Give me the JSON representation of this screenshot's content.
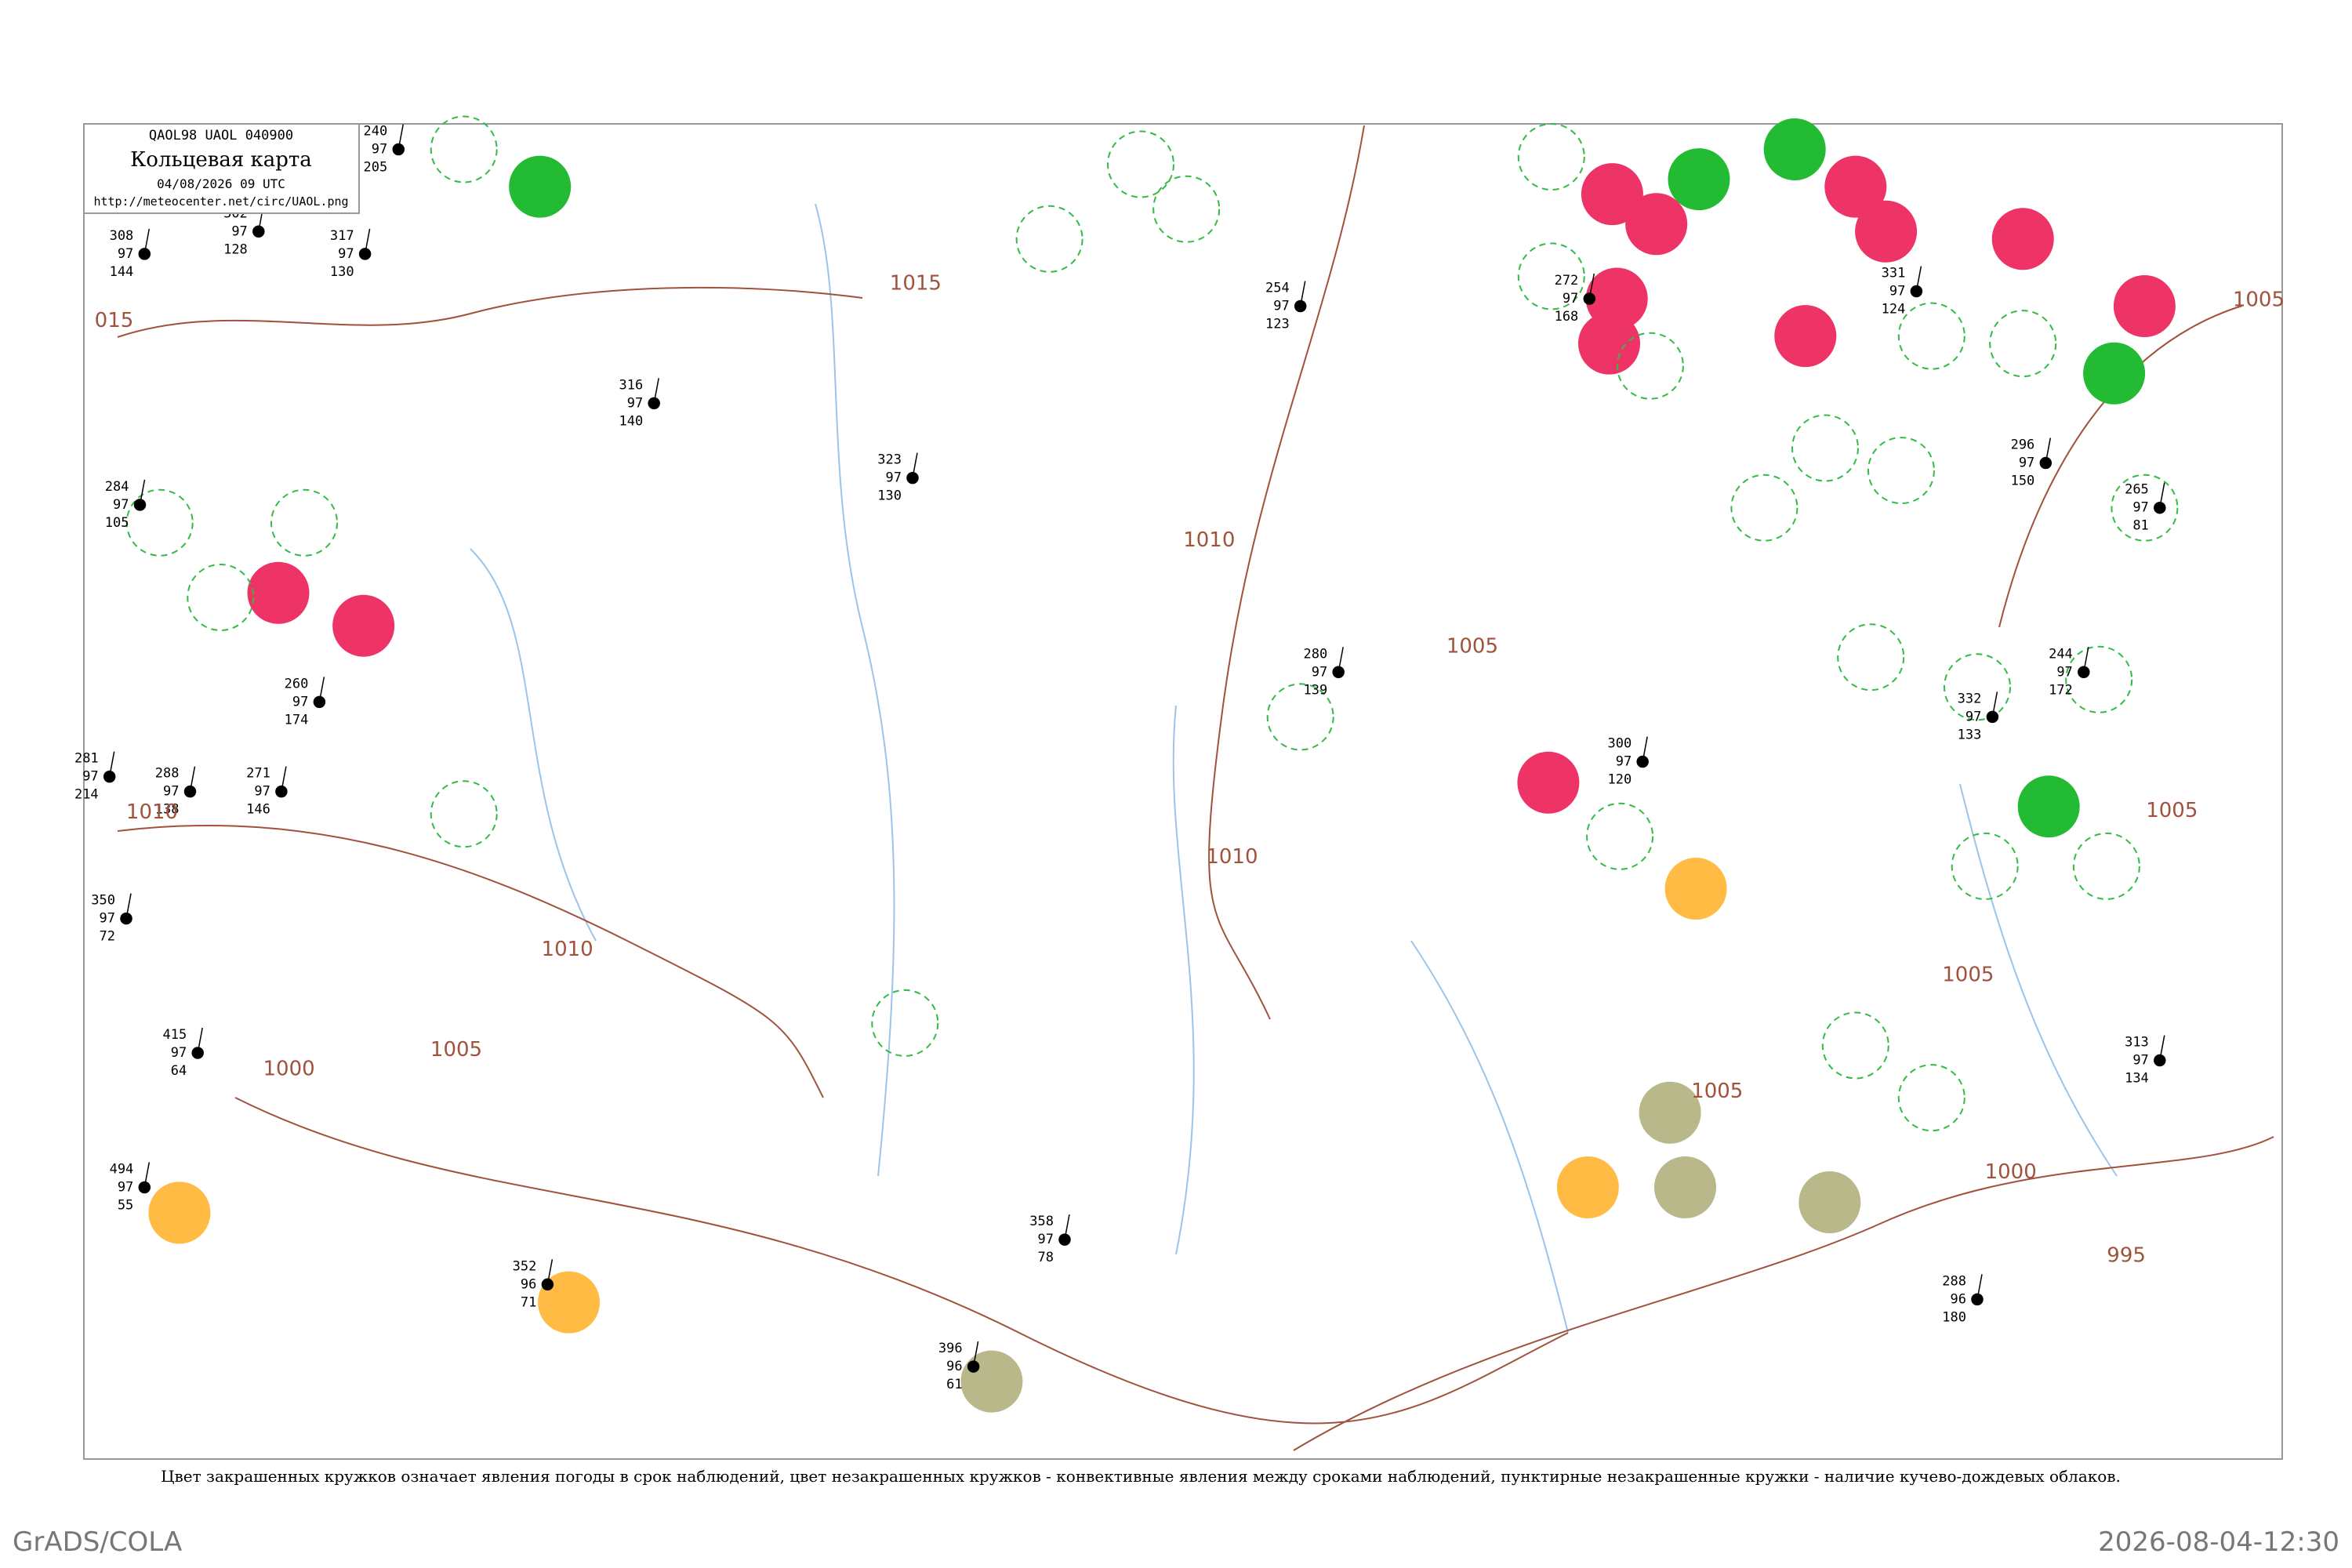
{
  "header": {
    "code": "QAOL98  UAOL  040900",
    "title": "Кольцевая карта",
    "date": "04/08/2026 09 UTC",
    "url": "http://meteocenter.net/circ/UAOL.png"
  },
  "isobar_labels": [
    "1015",
    "1010",
    "1010",
    "1010",
    "1010",
    "1005",
    "1005",
    "1005",
    "1005",
    "1005",
    "1005",
    "1000",
    "1000",
    "995",
    "015"
  ],
  "stations": [
    {
      "p": "308",
      "t": "97",
      "c": "144"
    },
    {
      "p": "302",
      "t": "97",
      "c": "128"
    },
    {
      "p": "317",
      "t": "97",
      "c": "130"
    },
    {
      "p": "240",
      "t": "97",
      "c": "205"
    },
    {
      "p": "284",
      "t": "97",
      "c": "105"
    },
    {
      "p": "281",
      "t": "97",
      "c": "214"
    },
    {
      "p": "288",
      "t": "97",
      "c": "138"
    },
    {
      "p": "271",
      "t": "97",
      "c": "146"
    },
    {
      "p": "350",
      "t": "97",
      "c": "72"
    },
    {
      "p": "415",
      "t": "97",
      "c": "64"
    },
    {
      "p": "494",
      "t": "97",
      "c": "55"
    },
    {
      "p": "260",
      "t": "97",
      "c": "174"
    },
    {
      "p": "316",
      "t": "97",
      "c": "140"
    },
    {
      "p": "323",
      "t": "97",
      "c": "130"
    },
    {
      "p": "254",
      "t": "97",
      "c": "123"
    },
    {
      "p": "272",
      "t": "97",
      "c": "168"
    },
    {
      "p": "331",
      "t": "97",
      "c": "124"
    },
    {
      "p": "296",
      "t": "97",
      "c": "150"
    },
    {
      "p": "265",
      "t": "97",
      "c": "81"
    },
    {
      "p": "244",
      "t": "97",
      "c": "172"
    },
    {
      "p": "332",
      "t": "97",
      "c": "133"
    },
    {
      "p": "280",
      "t": "97",
      "c": "139"
    },
    {
      "p": "288",
      "t": "96",
      "c": "180"
    },
    {
      "p": "358",
      "t": "97",
      "c": "78"
    },
    {
      "p": "352",
      "t": "96",
      "c": "71"
    },
    {
      "p": "396",
      "t": "96",
      "c": "61"
    },
    {
      "p": "300",
      "t": "97",
      "c": "120"
    },
    {
      "p": "313",
      "t": "97",
      "c": "134"
    }
  ],
  "caption": "Цвет закрашенных кружков означает явления погоды в срок наблюдений, цвет незакрашенных кружков - конвективные явления между сроками наблюдений, пунктирные незакрашенные кружки - наличие кучево-дождевых облаков.",
  "footer": {
    "left": "GrADS/COLA",
    "right": "2026-08-04-12:30"
  }
}
